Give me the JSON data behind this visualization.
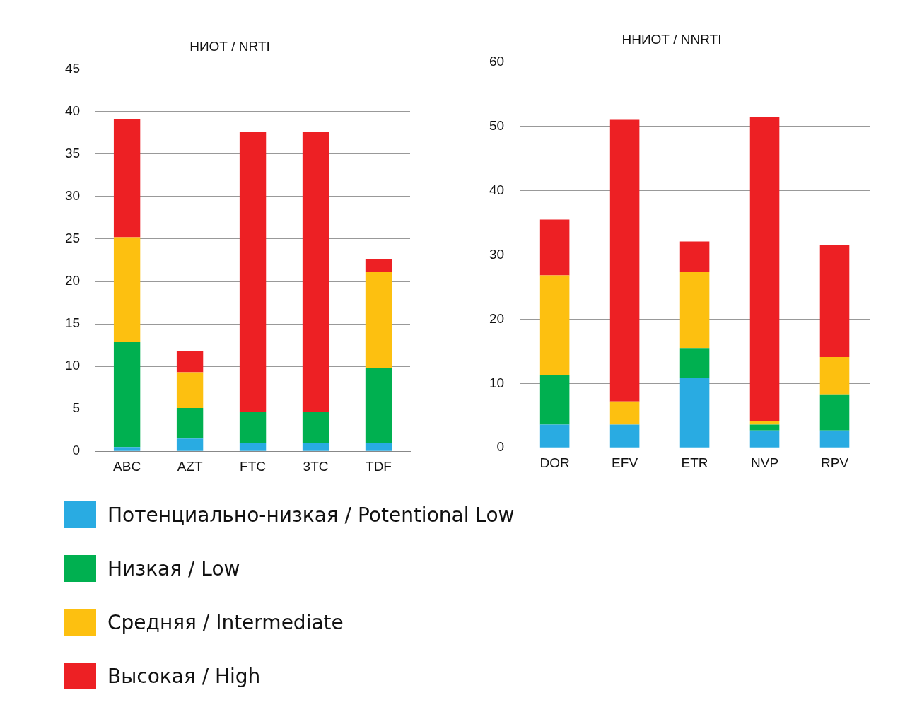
{
  "chart_data": [
    {
      "type": "bar",
      "title": "НИОТ / NRTI",
      "categories": [
        "ABC",
        "AZT",
        "FTC",
        "3TC",
        "TDF"
      ],
      "stacked": true,
      "ylim": [
        0,
        45
      ],
      "yticks": [
        0,
        5,
        10,
        15,
        20,
        25,
        30,
        35,
        40,
        45
      ],
      "grid": "y",
      "legend": "bottom",
      "series": [
        {
          "name": "Потенциально-низкая / Potentional Low",
          "color": "#29abe2",
          "values": [
            0.5,
            1.5,
            1.0,
            1.0,
            1.0
          ]
        },
        {
          "name": "Низкая / Low",
          "color": "#00b050",
          "values": [
            12.4,
            3.6,
            3.6,
            3.6,
            8.8
          ]
        },
        {
          "name": "Средняя / Intermediate",
          "color": "#fdc010",
          "values": [
            12.3,
            4.2,
            0,
            0,
            11.3
          ]
        },
        {
          "name": "Высокая / High",
          "color": "#ed2024",
          "values": [
            13.9,
            2.5,
            33.0,
            33.0,
            1.5
          ]
        }
      ]
    },
    {
      "type": "bar",
      "title": "ННИОТ / NNRTI",
      "categories": [
        "DOR",
        "EFV",
        "ETR",
        "NVP",
        "RPV"
      ],
      "stacked": true,
      "ylim": [
        0,
        60
      ],
      "yticks": [
        0,
        10,
        20,
        30,
        40,
        50,
        60
      ],
      "grid": "y",
      "series": [
        {
          "color": "#29abe2",
          "values": [
            3.6,
            3.6,
            10.8,
            2.7,
            2.7
          ]
        },
        {
          "color": "#00b050",
          "values": [
            7.7,
            0,
            4.7,
            0.9,
            5.6
          ]
        },
        {
          "color": "#fdc010",
          "values": [
            15.5,
            3.6,
            11.9,
            0.5,
            5.8
          ]
        },
        {
          "color": "#ed2024",
          "values": [
            8.7,
            43.8,
            4.7,
            47.4,
            17.4
          ]
        }
      ]
    }
  ]
}
